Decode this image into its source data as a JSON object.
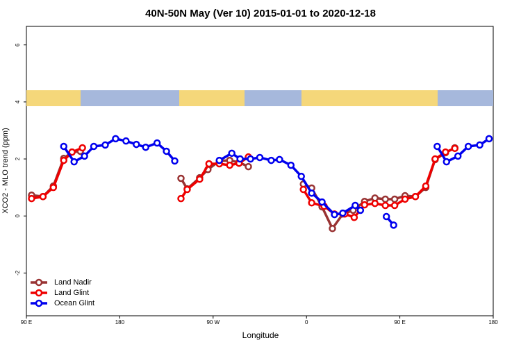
{
  "chart_data": {
    "type": "line",
    "title": "40N-50N May (Ver 10)   2015-01-01 to 2020-12-18",
    "x_label": "Longitude",
    "y_label": "XCO2 - MLO trend (ppm)",
    "xlim": [
      90,
      540
    ],
    "ylim": [
      -3.5,
      6.65
    ],
    "xticks": [
      {
        "value": 90,
        "label": "90 E"
      },
      180,
      {
        "value": 270,
        "label": "90 W"
      },
      {
        "value": 360,
        "label": "0"
      },
      {
        "value": 450,
        "label": "90 E"
      },
      {
        "value": 540,
        "label": "180"
      }
    ],
    "yticks": [
      -2,
      0,
      2,
      4,
      6
    ],
    "legend": "bottom-left",
    "series": [
      {
        "name": "Land Nadir",
        "color": "#993333",
        "x": [
          95,
          106,
          116,
          126,
          134,
          142,
          null,
          239,
          245,
          257,
          265,
          276,
          286,
          295,
          304,
          null,
          357,
          365,
          375,
          385,
          395,
          405,
          416,
          426,
          436,
          445,
          455,
          465,
          475,
          484,
          494,
          503
        ],
        "values": [
          0.73,
          0.68,
          1.05,
          2.02,
          2.24,
          2.27,
          null,
          1.32,
          0.95,
          1.34,
          1.63,
          1.93,
          1.95,
          1.88,
          1.73,
          null,
          1.12,
          0.98,
          0.32,
          -0.44,
          0.07,
          0.2,
          0.51,
          0.63,
          0.59,
          0.59,
          0.71,
          0.68,
          1.0,
          1.98,
          2.22,
          2.39
        ]
      },
      {
        "name": "Land Glint",
        "color": "#ee0000",
        "x": [
          95,
          106,
          116,
          126,
          134,
          144,
          null,
          239,
          245,
          257,
          266,
          276,
          286,
          295,
          304,
          null,
          357,
          365,
          377,
          387,
          397,
          406,
          416,
          426,
          436,
          445,
          455,
          465,
          475,
          484,
          494,
          503
        ],
        "values": [
          0.61,
          0.68,
          1.0,
          1.95,
          2.24,
          2.39,
          null,
          0.61,
          0.93,
          1.29,
          1.83,
          1.83,
          1.78,
          1.85,
          2.07,
          null,
          0.93,
          0.46,
          0.34,
          0.07,
          0.07,
          -0.05,
          0.39,
          0.44,
          0.37,
          0.37,
          0.59,
          0.68,
          1.05,
          2.0,
          2.24,
          2.37
        ]
      },
      {
        "name": "Ocean Glint",
        "color": "#0000ee",
        "x": [
          126,
          136,
          146,
          155,
          166,
          176,
          186,
          196,
          205,
          216,
          225,
          233,
          null,
          276,
          288,
          296,
          306,
          315,
          326,
          334,
          345,
          355,
          365,
          375,
          387,
          395,
          407,
          412,
          null,
          437,
          444,
          null,
          486,
          495,
          506,
          516,
          527,
          536
        ],
        "values": [
          2.44,
          1.9,
          2.1,
          2.44,
          2.49,
          2.71,
          2.63,
          2.51,
          2.41,
          2.56,
          2.27,
          1.93,
          null,
          1.95,
          2.2,
          2.0,
          2.0,
          2.05,
          1.95,
          1.98,
          1.78,
          1.39,
          0.8,
          0.49,
          0.05,
          0.1,
          0.37,
          0.2,
          null,
          -0.02,
          -0.32,
          null,
          2.44,
          1.9,
          2.1,
          2.44,
          2.49,
          2.71
        ]
      }
    ]
  }
}
